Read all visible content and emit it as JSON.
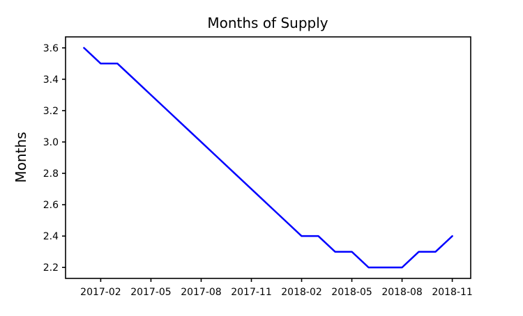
{
  "chart_data": {
    "type": "line",
    "title": "Months of Supply",
    "xlabel": "",
    "ylabel": "Months",
    "categories": [
      "2017-01",
      "2017-02",
      "2017-03",
      "2017-04",
      "2017-05",
      "2017-06",
      "2017-07",
      "2017-08",
      "2017-09",
      "2017-10",
      "2017-11",
      "2017-12",
      "2018-01",
      "2018-02",
      "2018-03",
      "2018-04",
      "2018-05",
      "2018-06",
      "2018-07",
      "2018-08",
      "2018-09",
      "2018-10",
      "2018-11"
    ],
    "values": [
      3.6,
      3.5,
      3.5,
      3.4,
      3.3,
      3.2,
      3.1,
      3.0,
      2.9,
      2.8,
      2.7,
      2.6,
      2.5,
      2.4,
      2.4,
      2.3,
      2.3,
      2.2,
      2.2,
      2.2,
      2.3,
      2.3,
      2.4
    ],
    "x_tick_labels": [
      "2017-02",
      "2017-05",
      "2017-08",
      "2017-11",
      "2018-02",
      "2018-05",
      "2018-08",
      "2018-11"
    ],
    "y_ticks": [
      2.2,
      2.4,
      2.6,
      2.8,
      3.0,
      3.2,
      3.4,
      3.6
    ],
    "y_tick_labels": [
      "2.2",
      "2.4",
      "2.6",
      "2.8",
      "3.0",
      "3.2",
      "3.4",
      "3.6"
    ],
    "ylim": [
      2.13,
      3.67
    ],
    "x_margin": 1.1,
    "line_color": "#0000ff",
    "line_width": 2.5,
    "axis_color": "#000000",
    "background_color": "#ffffff",
    "grid": false,
    "legend": "none",
    "markers": "none"
  }
}
